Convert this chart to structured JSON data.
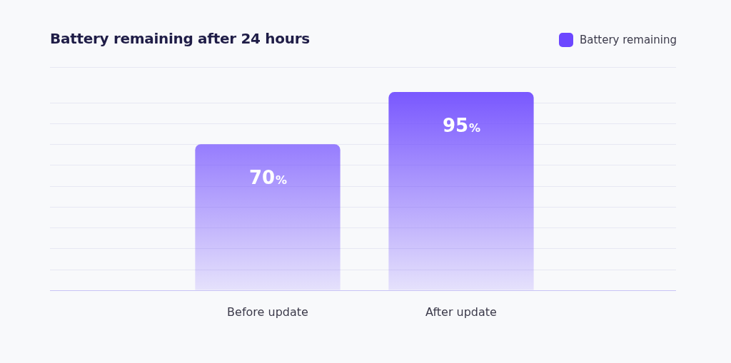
{
  "chart_data": {
    "type": "bar",
    "title": "Battery remaining after 24 hours",
    "categories": [
      "Before update",
      "After update"
    ],
    "series": [
      {
        "name": "Battery remaining",
        "color": "#6c47ff",
        "values": [
          70,
          95
        ],
        "value_labels": [
          "70%",
          "95%"
        ]
      }
    ],
    "ylim": [
      0,
      107
    ],
    "yticks": [
      {
        "value": 0,
        "label": null
      },
      {
        "value": 10,
        "label": null
      },
      {
        "value": 20,
        "label": null
      },
      {
        "value": 30,
        "label": null
      },
      {
        "value": 40,
        "label": null
      },
      {
        "value": 50,
        "label": null
      },
      {
        "value": 60,
        "label": null
      },
      {
        "value": 70,
        "label": null
      },
      {
        "value": 80,
        "label": null
      },
      {
        "value": 90,
        "label": null
      },
      {
        "value": 107,
        "label": null
      }
    ],
    "tick_labels": "x",
    "grid": "y",
    "legend": "top right"
  }
}
